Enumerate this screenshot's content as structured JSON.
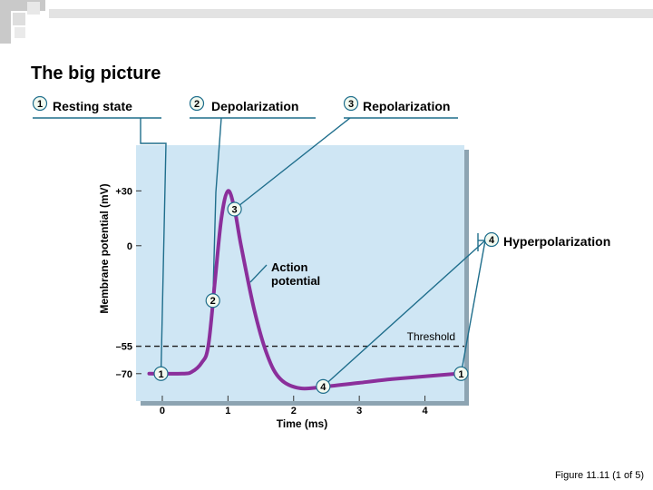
{
  "slide": {
    "title": "The big picture",
    "figure_caption": "Figure 11.11 (1 of 5)"
  },
  "colors": {
    "plot_background": "#cfe6f4",
    "trace": "#8b2f9b",
    "leader_lines": "#1f6e8c",
    "threshold_line": "#1a1a1a",
    "badge_fill": "#f2f9ef",
    "deco_gray": "#d6d6d6"
  },
  "labels": {
    "resting": {
      "number": "1",
      "text": "Resting state"
    },
    "depolarization": {
      "number": "2",
      "text": "Depolarization"
    },
    "repolarization": {
      "number": "3",
      "text": "Repolarization"
    },
    "hyperpolarization": {
      "number": "4",
      "text": "Hyperpolarization"
    },
    "action_potential": {
      "line1": "Action",
      "line2": "potential"
    },
    "threshold": "Threshold"
  },
  "chart_data": {
    "type": "line",
    "title": "",
    "xlabel": "Time (ms)",
    "ylabel": "Membrane potential (mV)",
    "xlim": [
      -0.4,
      4.6
    ],
    "ylim": [
      -85,
      55
    ],
    "x_ticks": [
      {
        "value": 0,
        "label": "0"
      },
      {
        "value": 1,
        "label": "1"
      },
      {
        "value": 2,
        "label": "2"
      },
      {
        "value": 3,
        "label": "3"
      },
      {
        "value": 4,
        "label": "4"
      }
    ],
    "y_ticks": [
      {
        "value": 30,
        "label": "+30"
      },
      {
        "value": 0,
        "label": "0"
      },
      {
        "value": -55,
        "label": "–55"
      },
      {
        "value": -70,
        "label": "–70"
      }
    ],
    "threshold": -55,
    "series": [
      {
        "points": [
          [
            -0.2,
            -70
          ],
          [
            0.3,
            -70
          ],
          [
            0.45,
            -69
          ],
          [
            0.6,
            -64
          ],
          [
            0.7,
            -55
          ],
          [
            0.8,
            -20
          ],
          [
            0.9,
            15
          ],
          [
            1.0,
            30
          ],
          [
            1.1,
            20
          ],
          [
            1.2,
            0
          ],
          [
            1.4,
            -35
          ],
          [
            1.6,
            -60
          ],
          [
            1.8,
            -73
          ],
          [
            2.1,
            -78
          ],
          [
            2.5,
            -77
          ],
          [
            3.0,
            -75
          ],
          [
            3.5,
            -73
          ],
          [
            4.0,
            -71.5
          ],
          [
            4.5,
            -70
          ]
        ]
      }
    ],
    "markers": [
      {
        "number": "1",
        "x": -0.02,
        "y": -70
      },
      {
        "number": "2",
        "x": 0.77,
        "y": -30
      },
      {
        "number": "3",
        "x": 1.1,
        "y": 20
      },
      {
        "number": "4",
        "x": 2.45,
        "y": -77
      },
      {
        "number": "1",
        "x": 4.55,
        "y": -70
      }
    ]
  }
}
